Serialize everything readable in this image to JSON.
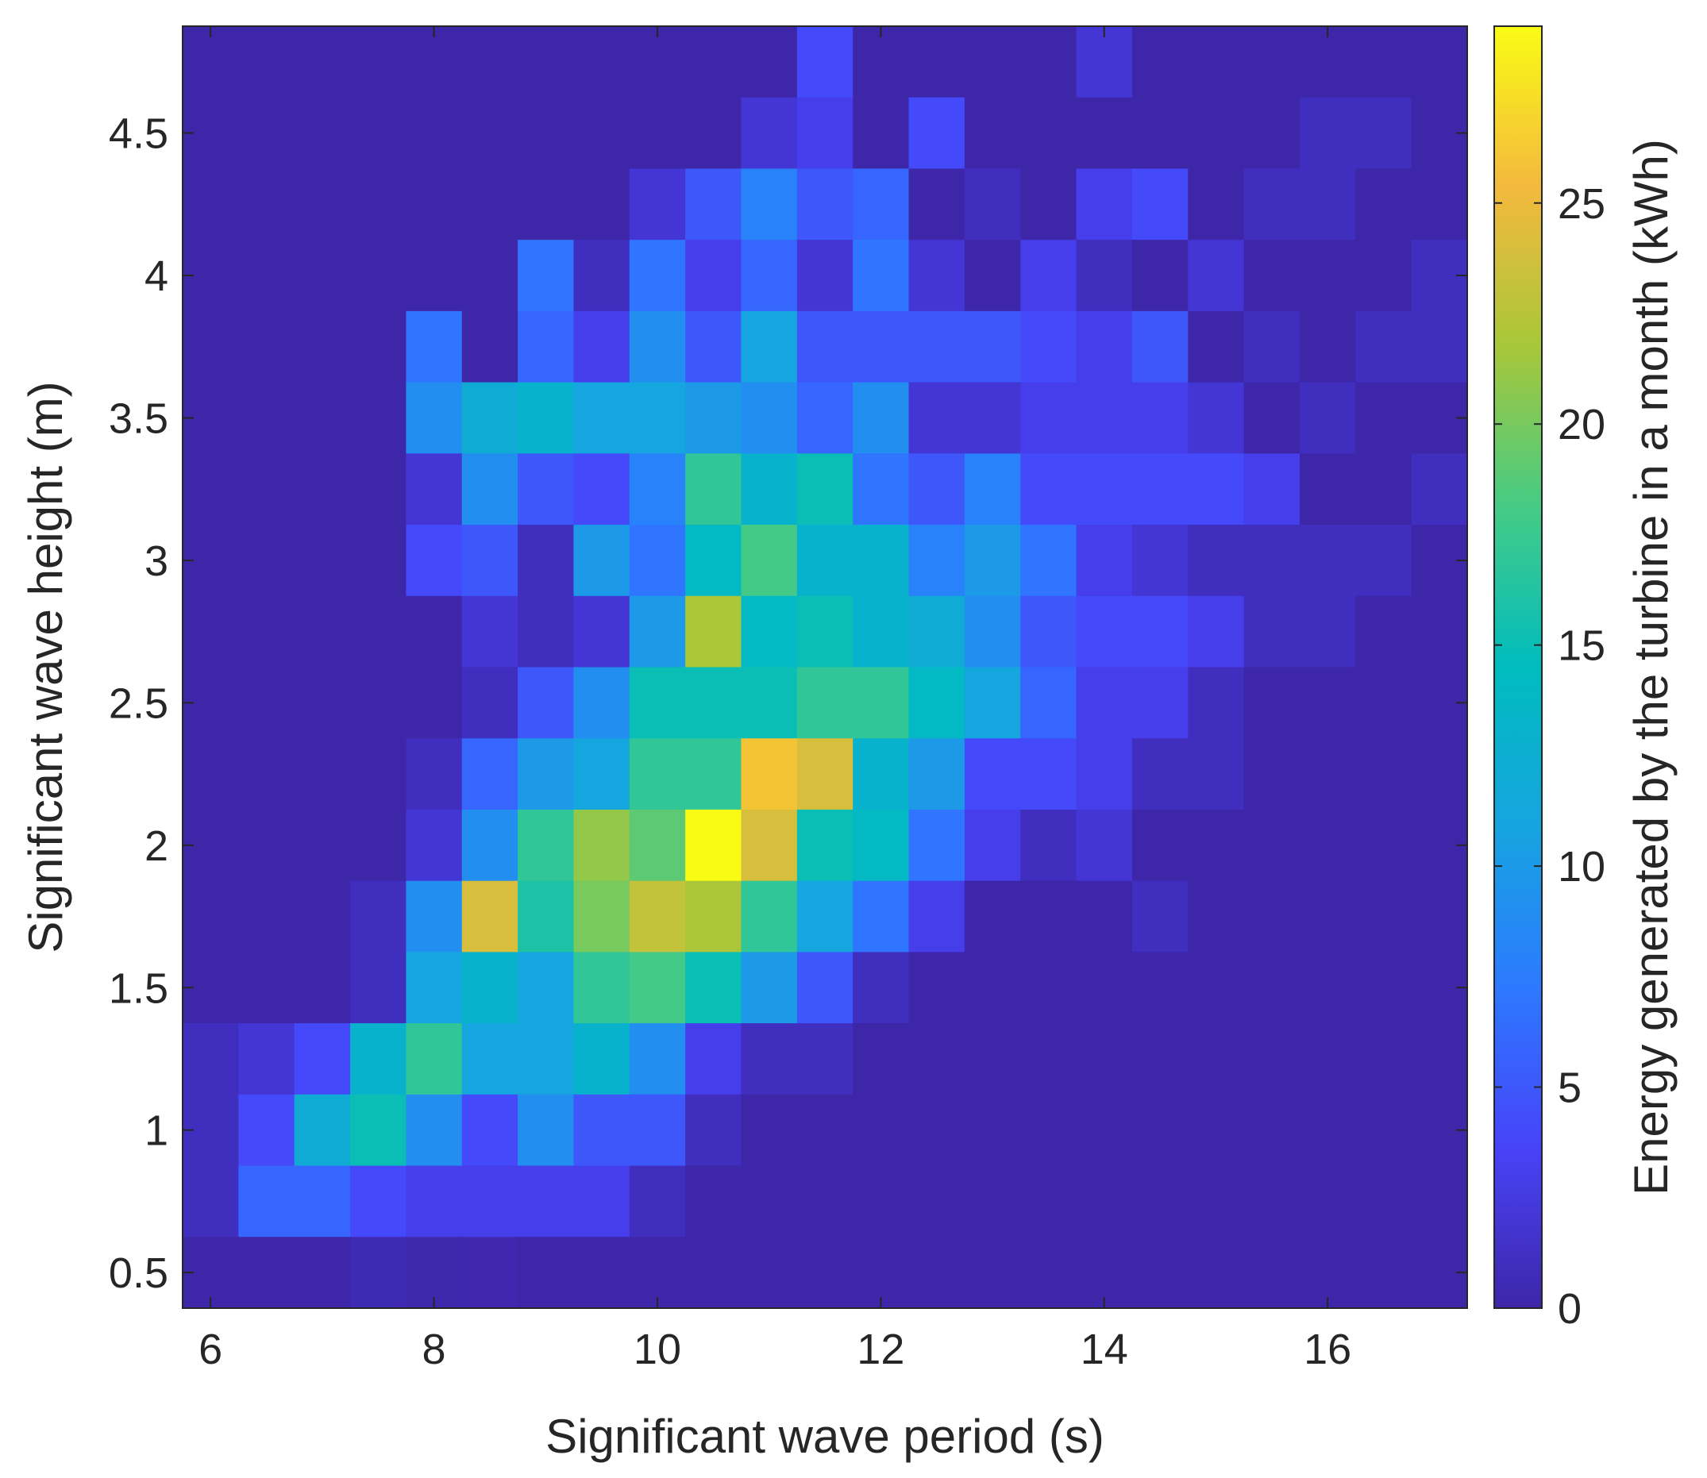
{
  "chart_data": {
    "type": "heatmap",
    "title": "",
    "xlabel": "Significant wave period (s)",
    "ylabel": "Significant wave height (m)",
    "colorbar_label": "Energy generated by the turbine in a month (kWh)",
    "colormap": "parula",
    "colormap_stops": [
      "#3e26a8",
      "#4743f8",
      "#2d79ff",
      "#16a4e0",
      "#00bcbe",
      "#45cb85",
      "#a7c73a",
      "#f4b93d",
      "#f9fb15"
    ],
    "xlim": [
      5.75,
      17.25
    ],
    "ylim": [
      0.375,
      4.875
    ],
    "clim": [
      0,
      29
    ],
    "x_ticks": [
      6,
      8,
      10,
      12,
      14,
      16
    ],
    "y_ticks": [
      0.5,
      1,
      1.5,
      2,
      2.5,
      3,
      3.5,
      4,
      4.5
    ],
    "colorbar_ticks": [
      0,
      5,
      10,
      15,
      20,
      25
    ],
    "x_centers": [
      6,
      6.5,
      7,
      7.5,
      8,
      8.5,
      9,
      9.5,
      10,
      10.5,
      11,
      11.5,
      12,
      12.5,
      13,
      13.5,
      14,
      14.5,
      15,
      15.5,
      16,
      16.5,
      17
    ],
    "y_centers": [
      4.75,
      4.5,
      4.25,
      4,
      3.75,
      3.5,
      3.25,
      3,
      2.75,
      2.5,
      2.25,
      2,
      1.75,
      1.5,
      1.25,
      1,
      0.75,
      0.5
    ],
    "values": [
      [
        0,
        0,
        0,
        0,
        0,
        0,
        0,
        0,
        0,
        0,
        0,
        4,
        0,
        0,
        0,
        0,
        2,
        0,
        0,
        0,
        0,
        0,
        0
      ],
      [
        0,
        0,
        0,
        0,
        0,
        0,
        0,
        0,
        0,
        0,
        2,
        3,
        0,
        4,
        0,
        0,
        0,
        0,
        0,
        0,
        1,
        1,
        0
      ],
      [
        0,
        0,
        0,
        0,
        0,
        0,
        0,
        0,
        2,
        5,
        8,
        5,
        6,
        0,
        1,
        0,
        3,
        4,
        0,
        1,
        1,
        0,
        0
      ],
      [
        0,
        0,
        0,
        0,
        0,
        0,
        7,
        1,
        7,
        3,
        6,
        2,
        7,
        2,
        0,
        3,
        1,
        0,
        2,
        0,
        0,
        0,
        1
      ],
      [
        0,
        0,
        0,
        0,
        7,
        0,
        6,
        3,
        9,
        5,
        11,
        5,
        5,
        5,
        5,
        4,
        3,
        5,
        0,
        1,
        0,
        1,
        1
      ],
      [
        0,
        0,
        0,
        0,
        9,
        12,
        13,
        11,
        11,
        10,
        9,
        6,
        9,
        2,
        2,
        3,
        3,
        3,
        2,
        0,
        1,
        0,
        0
      ],
      [
        0,
        0,
        0,
        0,
        2,
        9,
        5,
        4,
        8,
        17,
        13,
        15,
        7,
        5,
        8,
        4,
        4,
        4,
        4,
        3,
        0,
        0,
        1
      ],
      [
        0,
        0,
        0,
        0,
        4,
        5,
        1,
        10,
        7,
        14,
        18,
        13,
        13,
        8,
        10,
        7,
        3,
        2,
        1,
        1,
        1,
        1,
        0
      ],
      [
        0,
        0,
        0,
        0,
        0,
        2,
        1,
        2,
        10,
        22,
        14,
        15,
        13,
        12,
        9,
        5,
        4,
        4,
        3,
        1,
        1,
        0,
        0
      ],
      [
        0,
        0,
        0,
        0,
        0,
        1,
        5,
        9,
        15,
        15,
        15,
        17,
        17,
        14,
        11,
        6,
        3,
        3,
        1,
        0,
        0,
        0,
        0
      ],
      [
        0,
        0,
        0,
        0,
        1,
        6,
        10,
        11,
        17,
        17,
        26,
        24,
        13,
        10,
        4,
        4,
        3,
        1,
        1,
        0,
        0,
        0,
        0
      ],
      [
        0,
        0,
        0,
        0,
        2,
        9,
        17,
        21,
        19,
        29,
        24,
        15,
        14,
        7,
        3,
        1,
        2,
        0,
        0,
        0,
        0,
        0,
        0
      ],
      [
        0,
        0,
        0,
        1,
        9,
        24,
        16,
        20,
        23,
        22,
        17,
        11,
        7,
        3,
        0,
        0,
        0,
        1,
        0,
        0,
        0,
        0,
        0
      ],
      [
        0,
        0,
        0,
        1,
        11,
        13,
        11,
        17,
        18,
        15,
        10,
        5,
        1,
        0,
        0,
        0,
        0,
        0,
        0,
        0,
        0,
        0,
        0
      ],
      [
        1,
        2,
        4,
        13,
        17,
        11,
        11,
        13,
        9,
        3,
        1,
        1,
        0,
        0,
        0,
        0,
        0,
        0,
        0,
        0,
        0,
        0,
        0
      ],
      [
        1,
        4,
        12,
        15,
        9,
        4,
        9,
        5,
        5,
        1,
        0,
        0,
        0,
        0,
        0,
        0,
        0,
        0,
        0,
        0,
        0,
        0,
        0
      ],
      [
        1,
        6,
        6,
        4,
        3,
        3,
        3,
        3,
        1,
        0,
        0,
        0,
        0,
        0,
        0,
        0,
        0,
        0,
        0,
        0,
        0,
        0,
        0
      ],
      [
        0,
        0,
        0,
        0.5,
        0.2,
        0.3,
        0,
        0,
        0,
        0,
        0,
        0,
        0,
        0,
        0,
        0,
        0,
        0,
        0,
        0,
        0,
        0,
        0
      ]
    ]
  }
}
